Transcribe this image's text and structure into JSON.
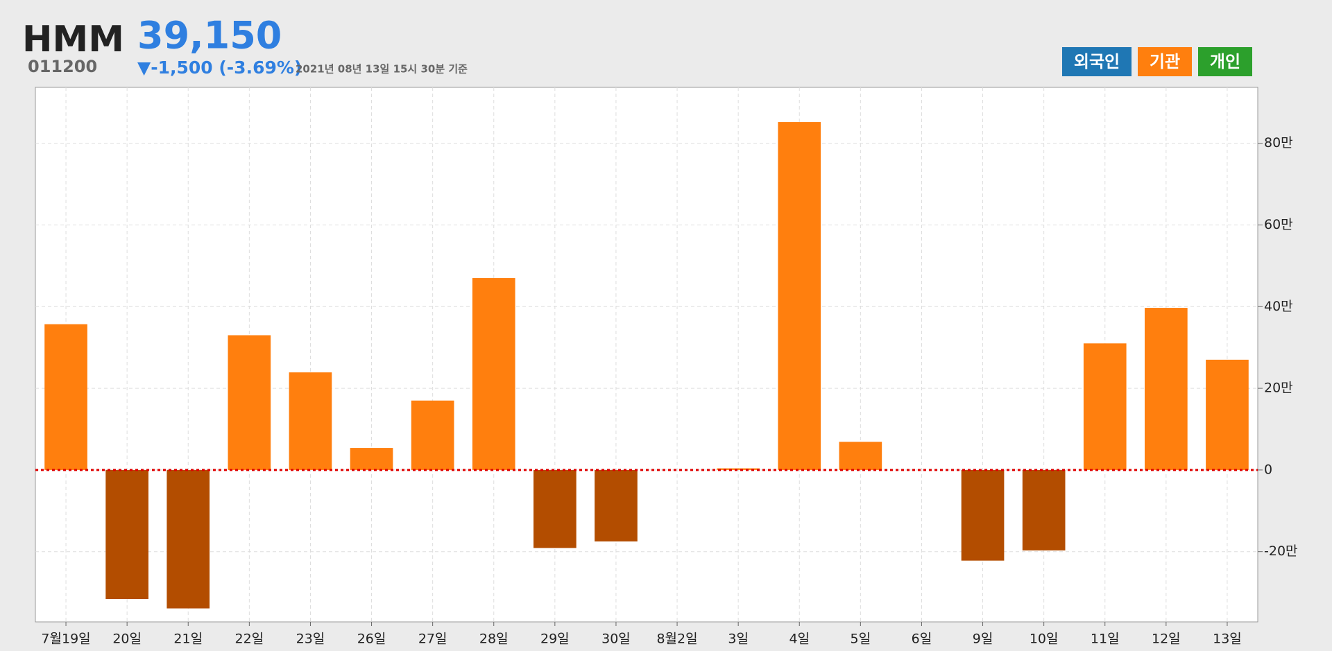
{
  "header": {
    "name": "HMM",
    "price": "39,150",
    "code": "011200",
    "change": "▼-1,500 (-3.69%)",
    "timestamp": "2021년 08년 13일 15시 30분 기준"
  },
  "legend_buttons": [
    {
      "label": "외국인",
      "color": "#1f77b4"
    },
    {
      "label": "기관",
      "color": "#ff7f0e"
    },
    {
      "label": "개인",
      "color": "#2ca02c"
    }
  ],
  "chart_data": {
    "type": "bar",
    "categories": [
      "7월19일",
      "20일",
      "21일",
      "22일",
      "23일",
      "26일",
      "27일",
      "28일",
      "29일",
      "30일",
      "8월2일",
      "3일",
      "4일",
      "5일",
      "6일",
      "9일",
      "10일",
      "11일",
      "12일",
      "13일"
    ],
    "series": [
      {
        "name": "기관",
        "color": "#ff7f0e",
        "negative_color": "#b34d00",
        "values": [
          357000,
          -316000,
          -339000,
          330000,
          239000,
          54000,
          170000,
          470000,
          -191000,
          -175000,
          0,
          4000,
          852000,
          69000,
          0,
          -222000,
          -197000,
          310000,
          397000,
          270000
        ]
      }
    ],
    "ylim": [
      -372000,
      937000
    ],
    "yticks": [
      {
        "value": -200000,
        "label": "-20만"
      },
      0,
      {
        "value": 200000,
        "label": "20만"
      },
      {
        "value": 400000,
        "label": "40만"
      },
      {
        "value": 600000,
        "label": "60만"
      },
      {
        "value": 800000,
        "label": "80만"
      }
    ],
    "grid": true,
    "zero_line_color": "#e00000"
  }
}
